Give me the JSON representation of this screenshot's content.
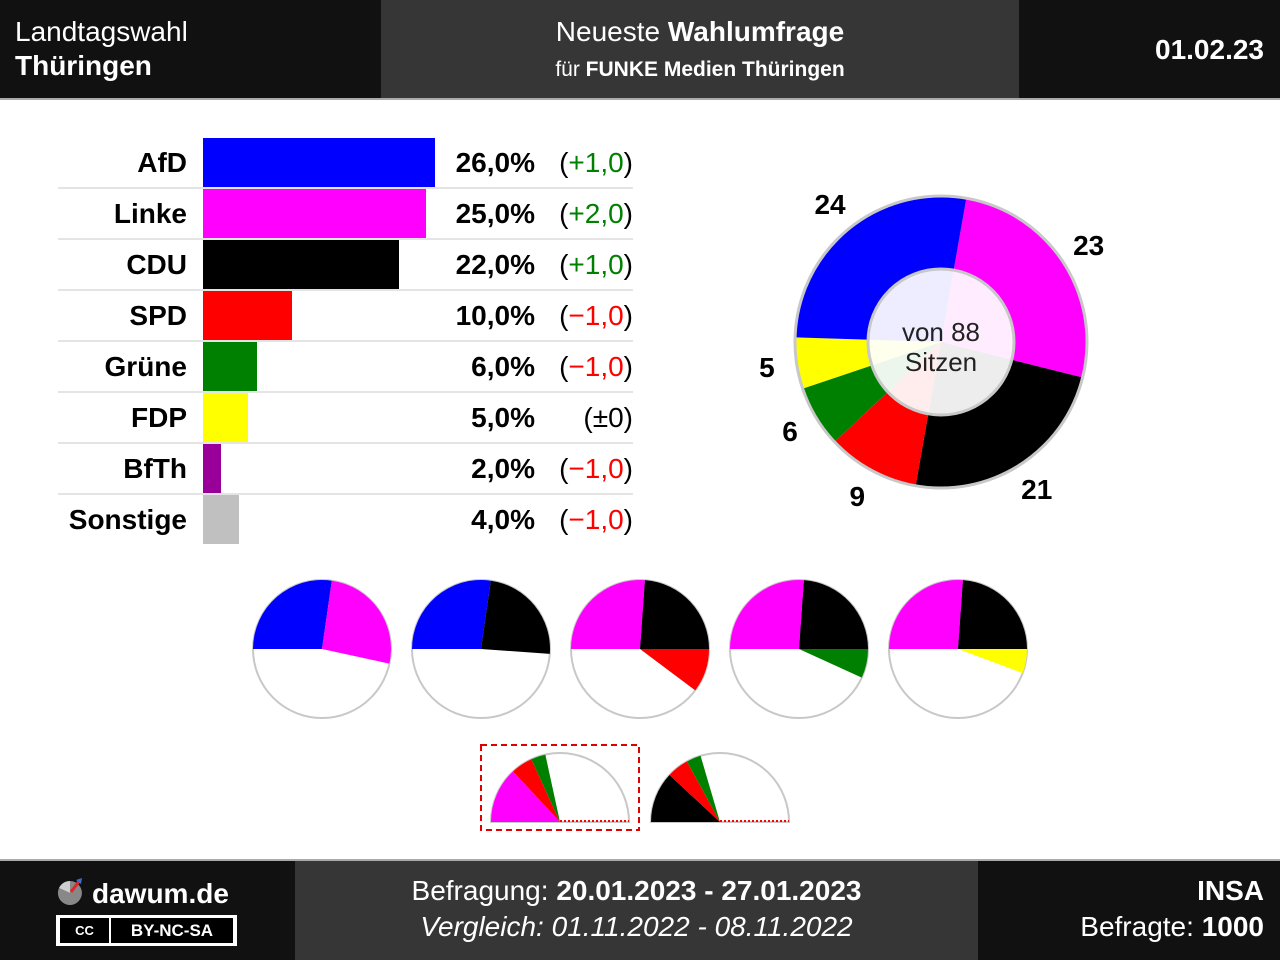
{
  "header": {
    "left_line1": "Landtagswahl",
    "left_line2": "Thüringen",
    "mid_line1_prefix": "Neueste",
    "mid_line1_bold": "Wahlumfrage",
    "mid_line2_prefix": "für",
    "mid_line2_bold": "FUNKE Medien Thüringen",
    "date": "01.02.23"
  },
  "chart_data": [
    {
      "type": "bar",
      "orientation": "horizontal",
      "categories": [
        "AfD",
        "Linke",
        "CDU",
        "SPD",
        "Grüne",
        "FDP",
        "BfTh",
        "Sonstige"
      ],
      "values": [
        26.0,
        25.0,
        22.0,
        10.0,
        6.0,
        5.0,
        2.0,
        4.0
      ],
      "value_labels": [
        "26,0%",
        "25,0%",
        "22,0%",
        "10,0%",
        "6,0%",
        "5,0%",
        "2,0%",
        "4,0%"
      ],
      "change_labels": [
        "(+1,0)",
        "(+2,0)",
        "(+1,0)",
        "(−1,0)",
        "(−1,0)",
        "(±0)",
        "(−1,0)",
        "(−1,0)"
      ],
      "change_colors": [
        "#008000",
        "#008000",
        "#008000",
        "#ff0000",
        "#ff0000",
        "#000000",
        "#ff0000",
        "#ff0000"
      ],
      "colors": [
        "#0000ff",
        "#ff00ff",
        "#000000",
        "#ff0000",
        "#008000",
        "#ffff00",
        "#990099",
        "#c0c0c0"
      ],
      "xlim": [
        0,
        26
      ]
    },
    {
      "type": "pie",
      "style": "donut",
      "categories": [
        "Linke",
        "CDU",
        "SPD",
        "Grüne",
        "FDP",
        "AfD"
      ],
      "values": [
        23,
        21,
        9,
        6,
        5,
        24
      ],
      "colors": [
        "#ff00ff",
        "#000000",
        "#ff0000",
        "#008000",
        "#ffff00",
        "#0000ff"
      ],
      "center_line1": "von 88",
      "center_line2": "Sitzen"
    }
  ],
  "coalitions": [
    {
      "parties": [
        "AfD",
        "Linke"
      ],
      "seats": [
        24,
        23
      ],
      "colors": [
        "#0000ff",
        "#ff00ff"
      ]
    },
    {
      "parties": [
        "AfD",
        "CDU"
      ],
      "seats": [
        24,
        21
      ],
      "colors": [
        "#0000ff",
        "#000000"
      ]
    },
    {
      "parties": [
        "Linke",
        "CDU",
        "SPD"
      ],
      "seats": [
        23,
        21,
        9
      ],
      "colors": [
        "#ff00ff",
        "#000000",
        "#ff0000"
      ]
    },
    {
      "parties": [
        "Linke",
        "CDU",
        "Grüne"
      ],
      "seats": [
        23,
        21,
        6
      ],
      "colors": [
        "#ff00ff",
        "#000000",
        "#008000"
      ]
    },
    {
      "parties": [
        "Linke",
        "CDU",
        "FDP"
      ],
      "seats": [
        23,
        21,
        5
      ],
      "colors": [
        "#ff00ff",
        "#000000",
        "#ffff00"
      ]
    },
    {
      "parties": [
        "Linke",
        "SPD",
        "Grüne"
      ],
      "seats": [
        23,
        9,
        6
      ],
      "colors": [
        "#ff00ff",
        "#ff0000",
        "#008000"
      ],
      "highlighted": true
    },
    {
      "parties": [
        "CDU",
        "SPD",
        "Grüne"
      ],
      "seats": [
        21,
        9,
        6
      ],
      "colors": [
        "#000000",
        "#ff0000",
        "#008000"
      ]
    }
  ],
  "total_seats": 88,
  "footer": {
    "site": "dawum.de",
    "license": "BY-NC-SA",
    "cc": "CC",
    "survey_label": "Befragung:",
    "survey_period": "20.01.2023 - 27.01.2023",
    "compare_label": "Vergleich:",
    "compare_period": "01.11.2022 - 08.11.2022",
    "institute": "INSA",
    "respondents_label": "Befragte:",
    "respondents": "1000"
  }
}
